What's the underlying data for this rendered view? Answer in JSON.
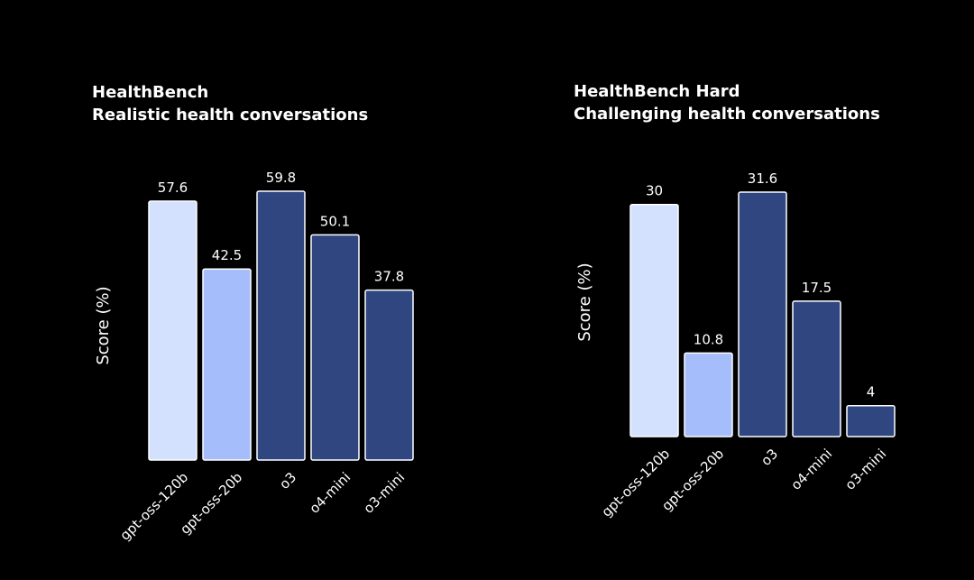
{
  "chart_data": [
    {
      "type": "bar",
      "title": "HealthBench",
      "subtitle": "Realistic health conversations",
      "xlabel": "",
      "ylabel": "Score (%)",
      "categories": [
        "gpt-oss-120b",
        "gpt-oss-20b",
        "o3",
        "o4-mini",
        "o3-mini"
      ],
      "values": [
        57.6,
        42.5,
        59.8,
        50.1,
        37.8
      ],
      "value_labels": [
        "57.6",
        "42.5",
        "59.8",
        "50.1",
        "37.8"
      ],
      "bar_colors": [
        "#d3e1ff",
        "#a5bdfa",
        "#2f4680",
        "#2f4680",
        "#2f4680"
      ],
      "ylim": [
        0,
        59.8
      ],
      "grid": false
    },
    {
      "type": "bar",
      "title": "HealthBench Hard",
      "subtitle": "Challenging health conversations",
      "xlabel": "",
      "ylabel": "Score (%)",
      "categories": [
        "gpt-oss-120b",
        "gpt-oss-20b",
        "o3",
        "o4-mini",
        "o3-mini"
      ],
      "values": [
        30,
        10.8,
        31.6,
        17.5,
        4
      ],
      "value_labels": [
        "30",
        "10.8",
        "31.6",
        "17.5",
        "4"
      ],
      "bar_colors": [
        "#d3e1ff",
        "#a5bdfa",
        "#2f4680",
        "#2f4680",
        "#2f4680"
      ],
      "ylim": [
        0,
        31.6
      ],
      "grid": false
    }
  ],
  "colors": {
    "background": "#000000",
    "text": "#ffffff",
    "bar_border": "#ffffff"
  }
}
